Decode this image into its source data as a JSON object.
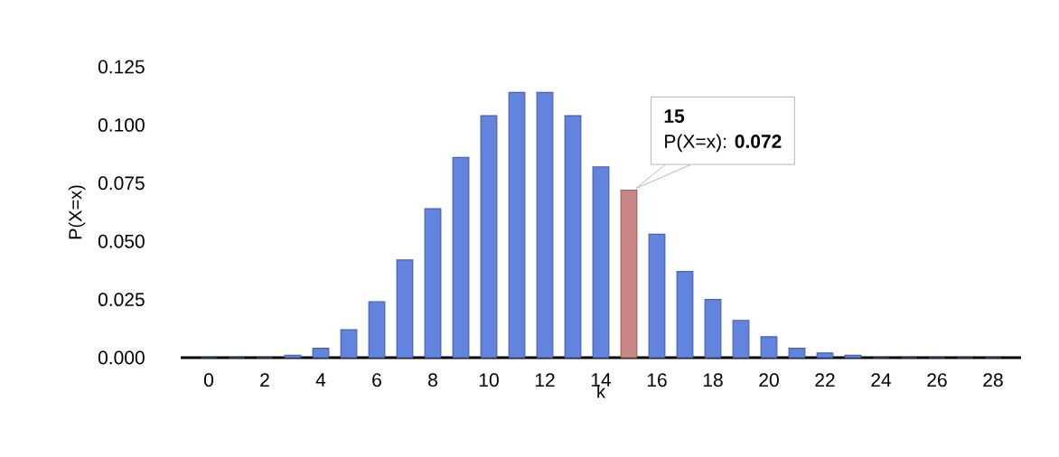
{
  "chart_data": {
    "type": "bar",
    "xlabel": "k",
    "ylabel": "P(X=x)",
    "x": [
      0,
      1,
      2,
      3,
      4,
      5,
      6,
      7,
      8,
      9,
      10,
      11,
      12,
      13,
      14,
      15,
      16,
      17,
      18,
      19,
      20,
      21,
      22,
      23,
      24,
      25,
      26,
      27,
      28
    ],
    "values": [
      0,
      0,
      0,
      0.001,
      0.004,
      0.012,
      0.024,
      0.042,
      0.064,
      0.086,
      0.104,
      0.114,
      0.114,
      0.104,
      0.082,
      0.072,
      0.053,
      0.037,
      0.025,
      0.016,
      0.009,
      0.004,
      0.002,
      0.001,
      0,
      0,
      0,
      0,
      0
    ],
    "colors": [
      "#6283de",
      "#6283de",
      "#6283de",
      "#6283de",
      "#6283de",
      "#6283de",
      "#6283de",
      "#6283de",
      "#6283de",
      "#6283de",
      "#6283de",
      "#6283de",
      "#6283de",
      "#6283de",
      "#6283de",
      "#c98585",
      "#6283de",
      "#6283de",
      "#6283de",
      "#6283de",
      "#6283de",
      "#6283de",
      "#6283de",
      "#6283de",
      "#6283de",
      "#6283de",
      "#6283de",
      "#6283de",
      "#6283de"
    ],
    "xlim": [
      -1,
      29
    ],
    "xticks": [
      0,
      2,
      4,
      6,
      8,
      10,
      12,
      14,
      16,
      18,
      20,
      22,
      24,
      26,
      28
    ],
    "ylim": [
      0,
      0.125
    ],
    "yticks": [
      {
        "value": 0,
        "label": "0.000"
      },
      {
        "value": 0.025,
        "label": "0.025"
      },
      {
        "value": 0.05,
        "label": "0.050"
      },
      {
        "value": 0.075,
        "label": "0.075"
      },
      {
        "value": 0.1,
        "label": "0.100"
      },
      {
        "value": 0.125,
        "label": "0.125"
      }
    ],
    "grid": false,
    "annotations": [
      "15",
      {
        "text": "P(X=x): **0.072**",
        "x": 15,
        "y": 0.072
      }
    ]
  }
}
